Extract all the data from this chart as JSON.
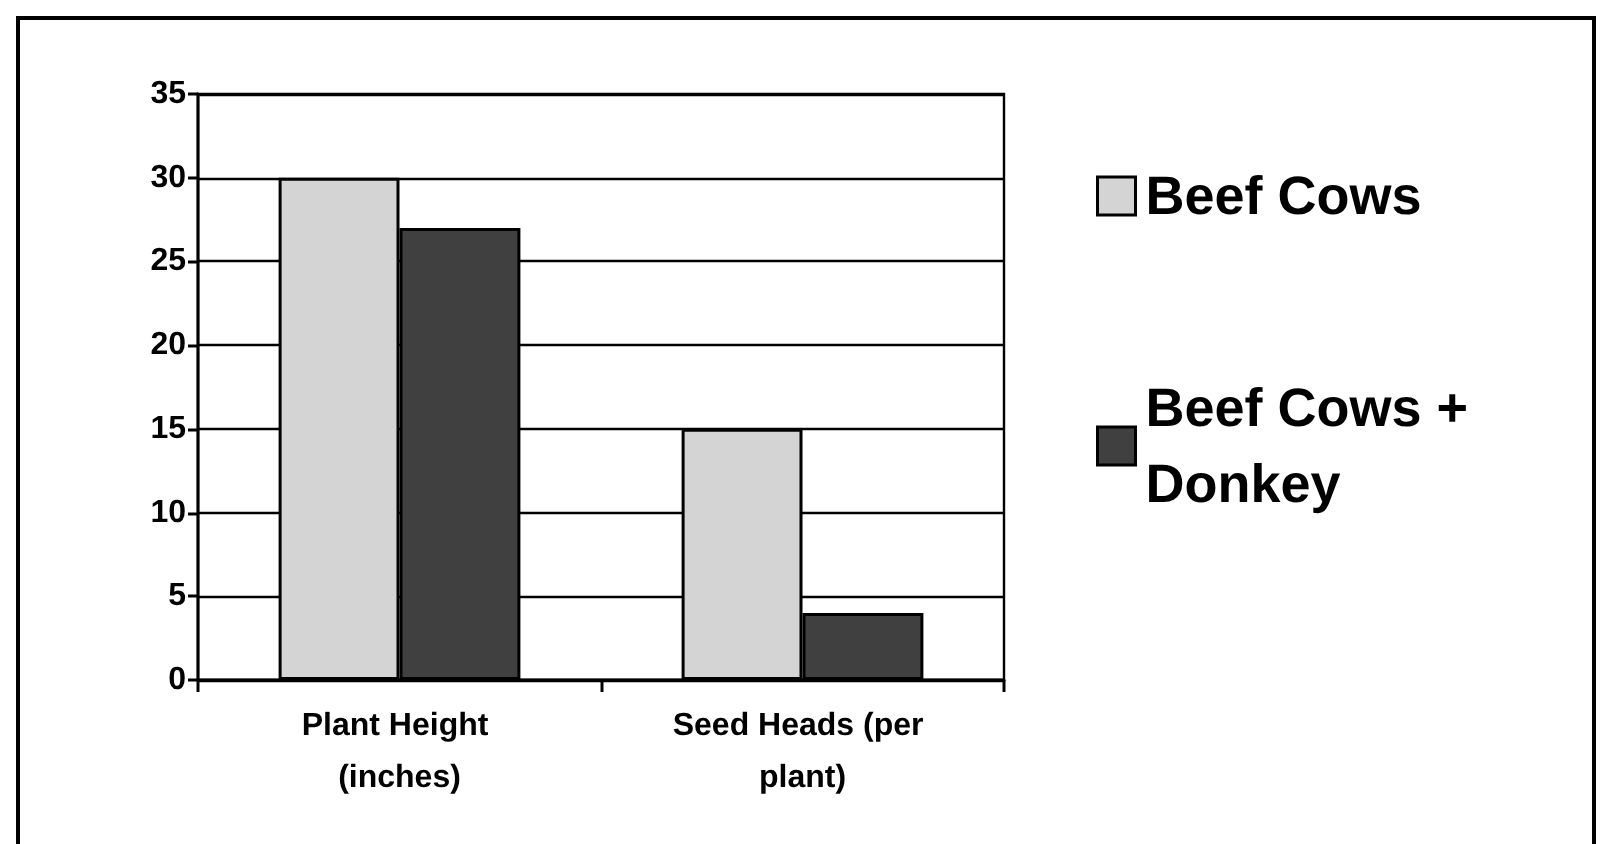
{
  "chart_data": {
    "type": "bar",
    "categories": [
      "Plant Height (inches)",
      "Seed Heads (per plant)"
    ],
    "series": [
      {
        "name": "Beef Cows",
        "color": "#d4d4d4",
        "values": [
          30,
          15
        ]
      },
      {
        "name": "Beef Cows + Donkey",
        "color": "#404040",
        "values": [
          27,
          4
        ]
      }
    ],
    "ylim": [
      0,
      35
    ],
    "yticks": [
      0,
      5,
      10,
      15,
      20,
      25,
      30,
      35
    ],
    "grid": "y",
    "legend": "right"
  }
}
